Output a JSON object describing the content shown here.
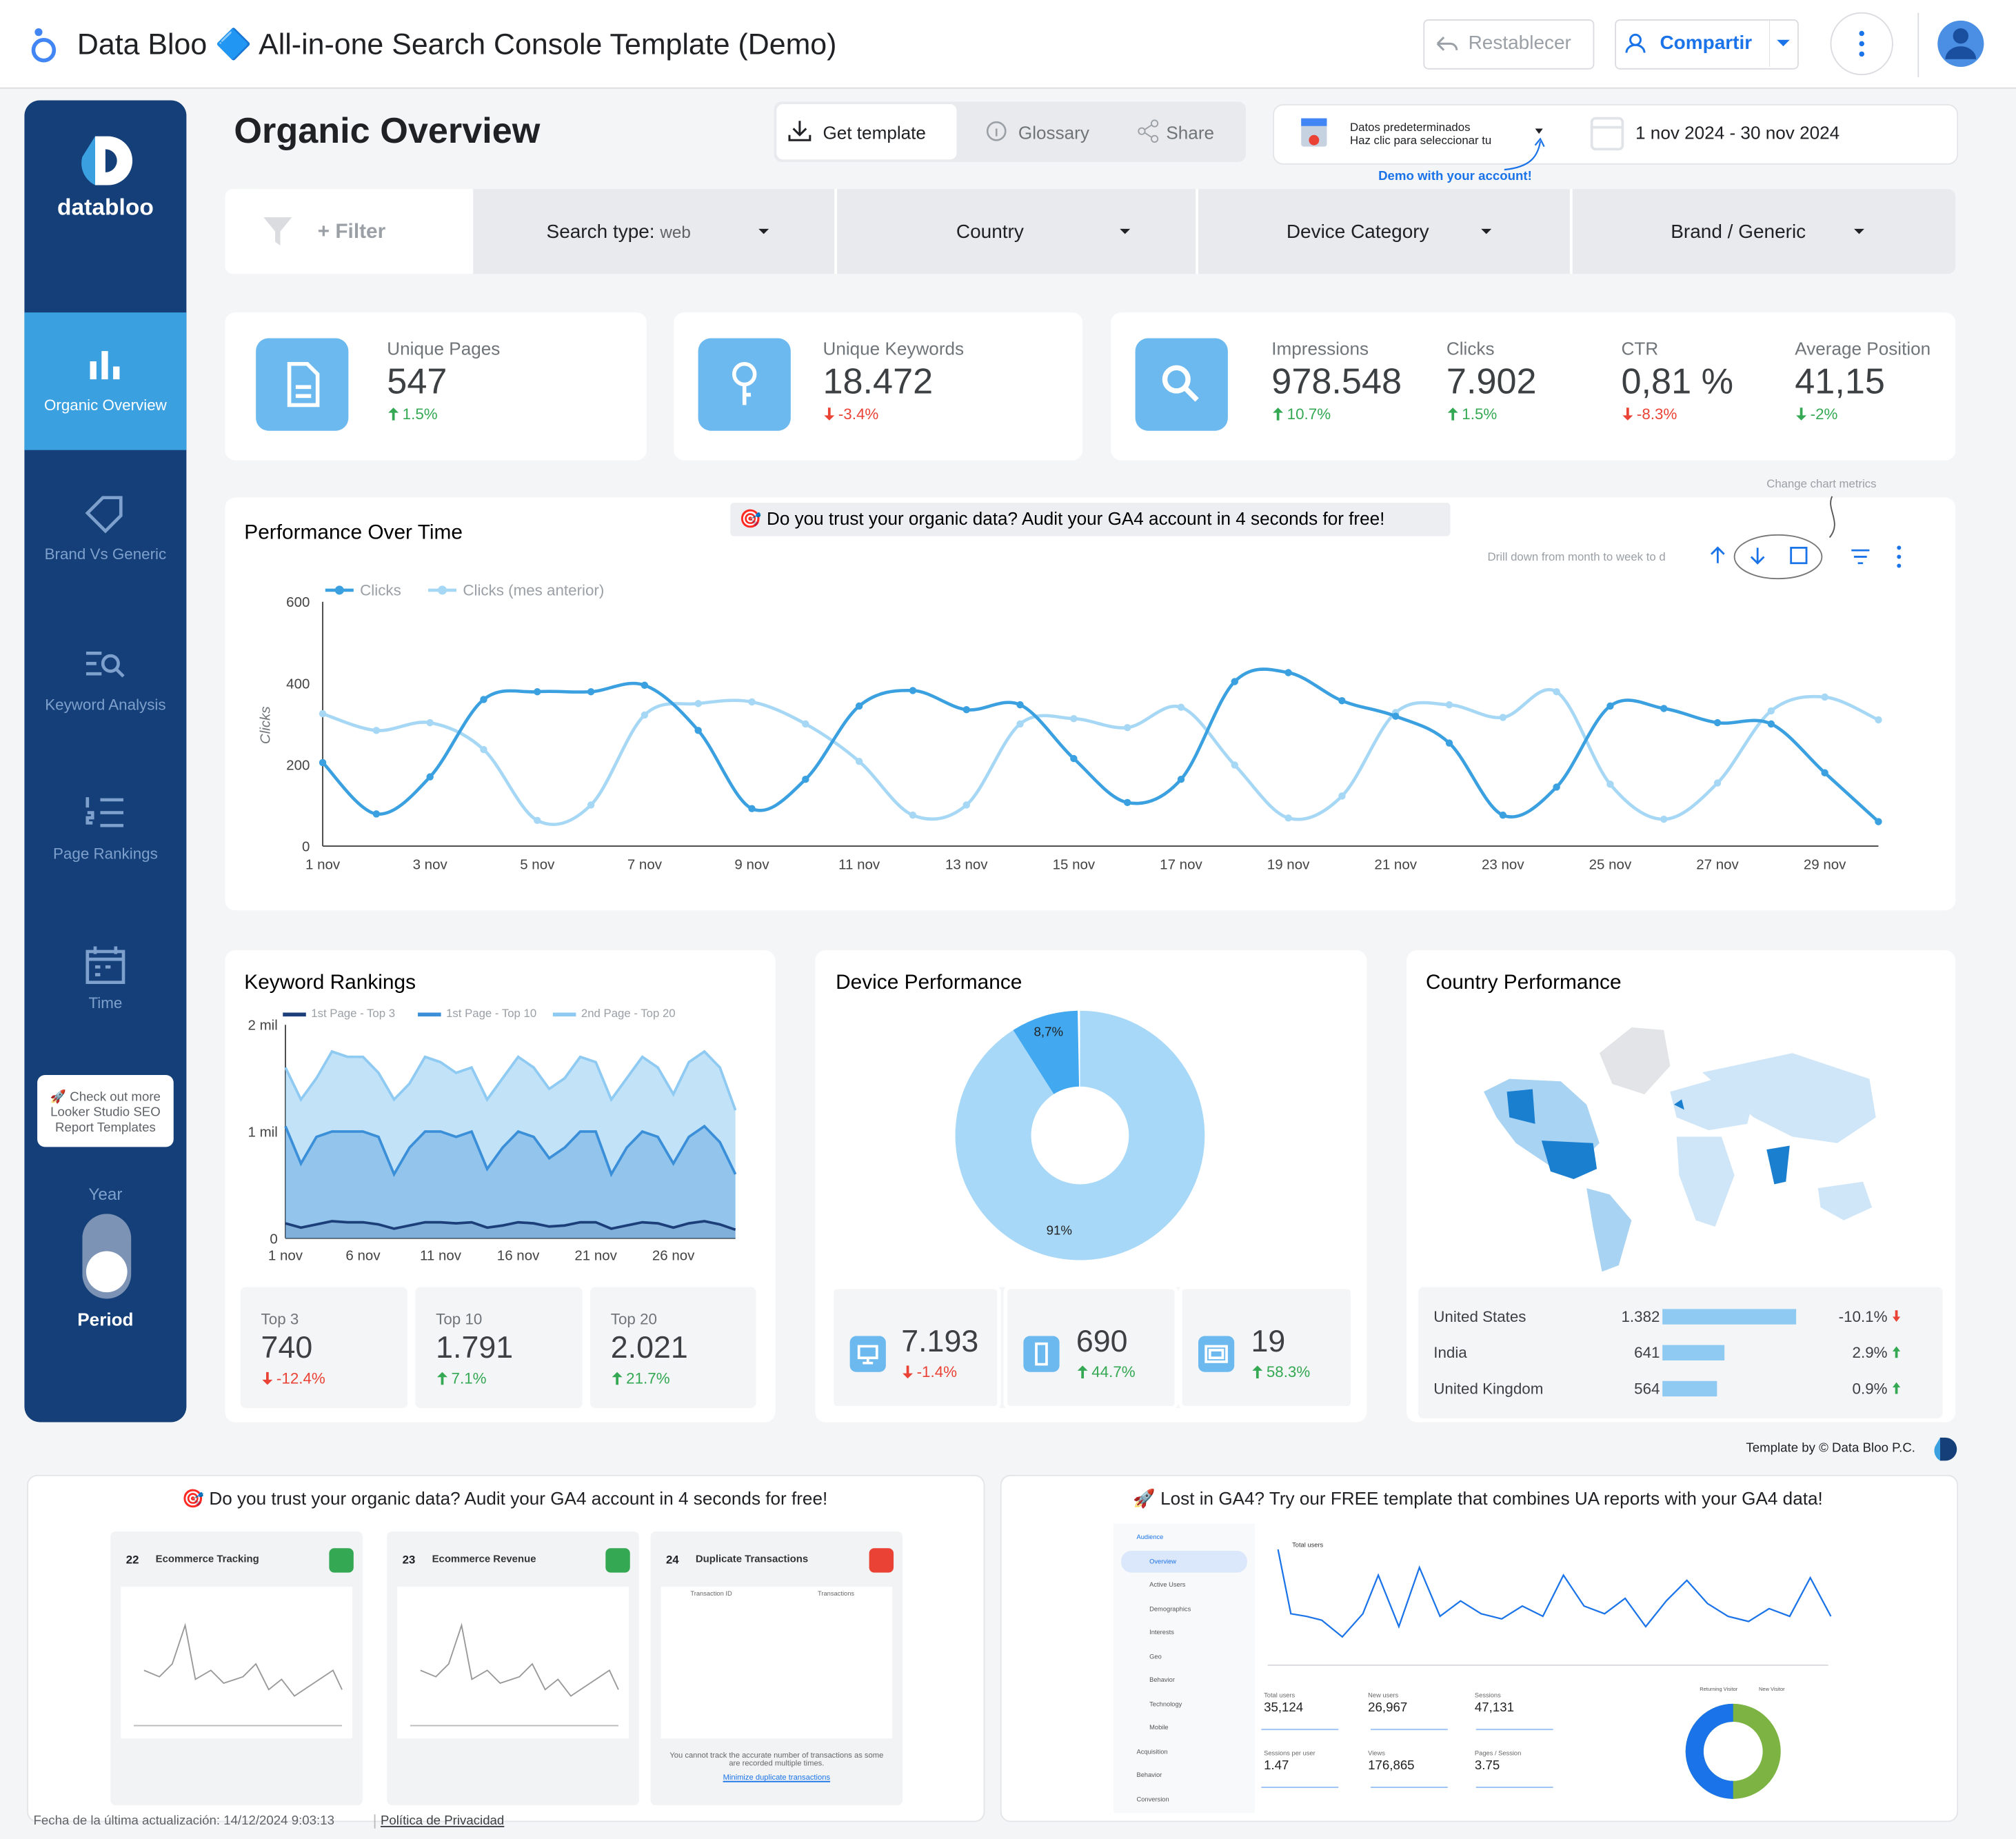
{
  "header": {
    "title": "Data Bloo 🔷 All-in-one Search Console Template (Demo)",
    "reset": "Restablecer",
    "share": "Compartir"
  },
  "sidebar": {
    "brand": "databloo",
    "nav": [
      "Organic Overview",
      "Brand Vs Generic",
      "Keyword Analysis",
      "Page Rankings",
      "Time"
    ],
    "active": 0,
    "promo": "🚀 Check out more Looker Studio SEO Report Templates",
    "toggle_top": "Year",
    "toggle_bottom": "Period"
  },
  "page_title": "Organic Overview",
  "actions": [
    "Get template",
    "Glossary",
    "Share"
  ],
  "data_source": {
    "line1": "Datos predeterminados",
    "line2": "Haz clic para seleccionar tu",
    "note": "Demo with your account!"
  },
  "date_range": "1 nov 2024 - 30 nov 2024",
  "filters": {
    "add": "+ Filter",
    "search_type": {
      "label": "Search type:",
      "value": "web"
    },
    "dropdowns": [
      "Country",
      "Device Category",
      "Brand / Generic"
    ]
  },
  "kpis": [
    {
      "label": "Unique Pages",
      "value": "547",
      "change": "1.5%",
      "trend": "up",
      "color": "#34a853"
    },
    {
      "label": "Unique Keywords",
      "value": "18.472",
      "change": "-3.4%",
      "trend": "down",
      "color": "#ea4335"
    },
    {
      "label": "Impressions",
      "value": "978.548",
      "change": "10.7%",
      "trend": "up",
      "color": "#34a853"
    },
    {
      "label": "Clicks",
      "value": "7.902",
      "change": "1.5%",
      "trend": "up",
      "color": "#34a853"
    },
    {
      "label": "CTR",
      "value": "0,81 %",
      "change": "-8.3%",
      "trend": "down",
      "color": "#ea4335"
    },
    {
      "label": "Average Position",
      "value": "41,15",
      "change": "-2%",
      "trend": "down",
      "color": "#34a853"
    }
  ],
  "performance_chart": {
    "type": "line",
    "title": "Performance Over Time",
    "banner": "🎯 Do you trust your organic data? Audit your GA4 account in 4 seconds for free!",
    "hint_metrics": "Change chart metrics",
    "hint_drill": "Drill down from month to week to d",
    "y_label": "Clicks",
    "categories": [
      "1 nov",
      null,
      "3 nov",
      null,
      "5 nov",
      null,
      "7 nov",
      null,
      "9 nov",
      null,
      "11 nov",
      null,
      "13 nov",
      null,
      "15 nov",
      null,
      "17 nov",
      null,
      "19 nov",
      null,
      "21 nov",
      null,
      "23 nov",
      null,
      "25 nov",
      null,
      "27 nov",
      null,
      "29 nov",
      null
    ],
    "ylim": [
      0,
      600
    ],
    "yticks": [
      0,
      200,
      400,
      600
    ],
    "series": [
      {
        "name": "Clicks",
        "color": "#3ba0e0",
        "values": [
          205,
          79,
          170,
          360,
          379,
          379,
          395,
          284,
          92,
          164,
          344,
          382,
          335,
          347,
          215,
          107,
          164,
          404,
          426,
          357,
          319,
          253,
          76,
          145,
          344,
          338,
          303,
          300,
          180,
          60
        ]
      },
      {
        "name": "Clicks (mes anterior)",
        "color": "#a6d8f5",
        "values": [
          325,
          284,
          303,
          237,
          63,
          101,
          322,
          350,
          354,
          300,
          208,
          76,
          101,
          300,
          313,
          291,
          341,
          199,
          69,
          123,
          328,
          347,
          316,
          379,
          152,
          66,
          155,
          332,
          366,
          310
        ]
      }
    ]
  },
  "keyword_chart": {
    "type": "area",
    "title": "Keyword Rankings",
    "categories": [
      "1 nov",
      null,
      null,
      null,
      null,
      "6 nov",
      null,
      null,
      null,
      null,
      "11 nov",
      null,
      null,
      null,
      null,
      "16 nov",
      null,
      null,
      null,
      null,
      "21 nov",
      null,
      null,
      null,
      null,
      "26 nov",
      null,
      null,
      null,
      null
    ],
    "ylim": [
      0,
      2000000
    ],
    "yticks": [
      0,
      {
        "value": 1000000,
        "label": "1 mil"
      },
      {
        "value": 2000000,
        "label": "2 mil"
      }
    ],
    "series": [
      {
        "name": "1st Page - Top 3",
        "color": "#1c3f7a",
        "values": [
          140000,
          100000,
          130000,
          160000,
          150000,
          150000,
          130000,
          90000,
          120000,
          150000,
          150000,
          140000,
          150000,
          100000,
          120000,
          150000,
          140000,
          110000,
          120000,
          150000,
          150000,
          90000,
          120000,
          150000,
          140000,
          100000,
          140000,
          160000,
          130000,
          80000
        ]
      },
      {
        "name": "1st Page - Top 10",
        "color": "#3b8fd8",
        "values": [
          1050000,
          700000,
          950000,
          1000000,
          1000000,
          1000000,
          950000,
          600000,
          850000,
          1000000,
          1000000,
          950000,
          1000000,
          650000,
          850000,
          1000000,
          950000,
          750000,
          850000,
          1000000,
          1000000,
          600000,
          850000,
          1000000,
          950000,
          700000,
          950000,
          1050000,
          900000,
          600000
        ]
      },
      {
        "name": "2nd Page - Top 20",
        "color": "#8fcaf2",
        "values": [
          1600000,
          1300000,
          1500000,
          1750000,
          1700000,
          1700000,
          1550000,
          1300000,
          1450000,
          1700000,
          1650000,
          1550000,
          1600000,
          1300000,
          1500000,
          1700000,
          1600000,
          1400000,
          1500000,
          1700000,
          1650000,
          1300000,
          1500000,
          1700000,
          1600000,
          1350000,
          1650000,
          1750000,
          1600000,
          1200000
        ]
      }
    ],
    "kpis": [
      {
        "label": "Top 3",
        "value": "740",
        "change": "-12.4%",
        "trend": "down",
        "color": "#ea4335"
      },
      {
        "label": "Top 10",
        "value": "1.791",
        "change": "7.1%",
        "trend": "up",
        "color": "#34a853"
      },
      {
        "label": "Top 20",
        "value": "2.021",
        "change": "21.7%",
        "trend": "up",
        "color": "#34a853"
      }
    ]
  },
  "device_chart": {
    "type": "pie",
    "title": "Device Performance",
    "values": [
      91,
      8.7
    ],
    "value_labels": [
      "91%",
      "8,7%"
    ],
    "colors": [
      "#a8d8f7",
      "#42a8f0"
    ],
    "kpis": [
      {
        "value": "7.193",
        "change": "-1.4%",
        "trend": "down",
        "color": "#ea4335"
      },
      {
        "value": "690",
        "change": "44.7%",
        "trend": "up",
        "color": "#34a853"
      },
      {
        "value": "19",
        "change": "58.3%",
        "trend": "up",
        "color": "#34a853"
      }
    ]
  },
  "country_chart": {
    "type": "bar",
    "title": "Country Performance",
    "color": "#8fcaf2",
    "categories": [
      "United States",
      "India",
      "United Kingdom"
    ],
    "values": [
      1382,
      641,
      564
    ],
    "value_labels": [
      "1.382",
      "641",
      "564"
    ],
    "changes": [
      {
        "label": "-10.1%",
        "trend": "down",
        "color": "#ea4335"
      },
      {
        "label": "2.9%",
        "trend": "up",
        "color": "#34a853"
      },
      {
        "label": "0.9%",
        "trend": "up",
        "color": "#34a853"
      }
    ]
  },
  "credit": "Template by © Data Bloo P.C.",
  "promo_left": {
    "title": "🎯 Do you trust your organic data? Audit your GA4 account in 4 seconds for free!",
    "cards": [
      {
        "number": "22",
        "title": "Ecommerce Tracking",
        "status": "#34a853"
      },
      {
        "number": "23",
        "title": "Ecommerce Revenue",
        "status": "#34a853"
      },
      {
        "number": "24",
        "title": "Duplicate Transactions",
        "status": "#ea4335"
      }
    ],
    "table_headers": [
      "Transaction ID",
      "Transactions"
    ],
    "warning": "You cannot track the accurate number of transactions as some are recorded multiple times.",
    "link": "Minimize duplicate transactions"
  },
  "promo_right": {
    "title": "🚀 Lost in GA4? Try our FREE template that combines UA reports with your GA4 data!",
    "menu": [
      "Audience",
      "Overview",
      "Active Users",
      "Demographics",
      "Interests",
      "Geo",
      "Behavior",
      "Technology",
      "Mobile",
      "Acquisition",
      "Behavior",
      "Conversion"
    ],
    "legend": "Total users",
    "metrics": [
      {
        "label": "Total users",
        "value": "35,124"
      },
      {
        "label": "New users",
        "value": "26,967"
      },
      {
        "label": "Sessions",
        "value": "47,131"
      },
      {
        "label": "Sessions per user",
        "value": "1.47"
      },
      {
        "label": "Views",
        "value": "176,865"
      },
      {
        "label": "Pages / Session",
        "value": "3.75"
      }
    ],
    "pie_legend": [
      "Returning Visitor",
      "New Visitor"
    ]
  },
  "footer": {
    "updated": "Fecha de la última actualización: 14/12/2024 9:03:13",
    "privacy": "Política de Privacidad"
  }
}
